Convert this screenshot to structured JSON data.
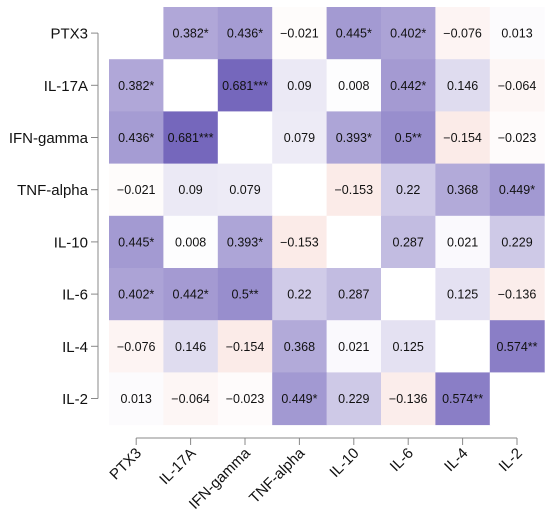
{
  "chart_data": {
    "type": "heatmap",
    "labels": [
      "PTX3",
      "IL-17A",
      "IFN-gamma",
      "TNF-alpha",
      "IL-10",
      "IL-6",
      "IL-4",
      "IL-2"
    ],
    "values": [
      [
        null,
        0.382,
        0.436,
        -0.021,
        0.445,
        0.402,
        -0.076,
        0.013
      ],
      [
        0.382,
        null,
        0.681,
        0.09,
        0.008,
        0.442,
        0.146,
        -0.064
      ],
      [
        0.436,
        0.681,
        null,
        0.079,
        0.393,
        0.5,
        -0.154,
        -0.023
      ],
      [
        -0.021,
        0.09,
        0.079,
        null,
        -0.153,
        0.22,
        0.368,
        0.449
      ],
      [
        0.445,
        0.008,
        0.393,
        -0.153,
        null,
        0.287,
        0.021,
        0.229
      ],
      [
        0.402,
        0.442,
        0.5,
        0.22,
        0.287,
        null,
        0.125,
        -0.136
      ],
      [
        -0.076,
        0.146,
        -0.154,
        0.368,
        0.021,
        0.125,
        null,
        0.574
      ],
      [
        0.013,
        -0.064,
        -0.023,
        0.449,
        0.229,
        -0.136,
        0.574,
        null
      ]
    ],
    "cell_text": [
      [
        "",
        "0.382*",
        "0.436*",
        "−0.021",
        "0.445*",
        "0.402*",
        "−0.076",
        "0.013"
      ],
      [
        "0.382*",
        "",
        "0.681***",
        "0.09",
        "0.008",
        "0.442*",
        "0.146",
        "−0.064"
      ],
      [
        "0.436*",
        "0.681***",
        "",
        "0.079",
        "0.393*",
        "0.5**",
        "−0.154",
        "−0.023"
      ],
      [
        "−0.021",
        "0.09",
        "0.079",
        "",
        "−0.153",
        "0.22",
        "0.368",
        "0.449*"
      ],
      [
        "0.445*",
        "0.008",
        "0.393*",
        "−0.153",
        "",
        "0.287",
        "0.021",
        "0.229"
      ],
      [
        "0.402*",
        "0.442*",
        "0.5**",
        "0.22",
        "0.287",
        "",
        "0.125",
        "−0.136"
      ],
      [
        "−0.076",
        "0.146",
        "−0.154",
        "0.368",
        "0.021",
        "0.125",
        "",
        "0.574**"
      ],
      [
        "0.013",
        "−0.064",
        "−0.023",
        "0.449*",
        "0.229",
        "−0.136",
        "0.574**",
        ""
      ]
    ],
    "colors": {
      "positive": "#6e5fb8",
      "negative": "#e06a5a",
      "axis": "#888888"
    }
  }
}
